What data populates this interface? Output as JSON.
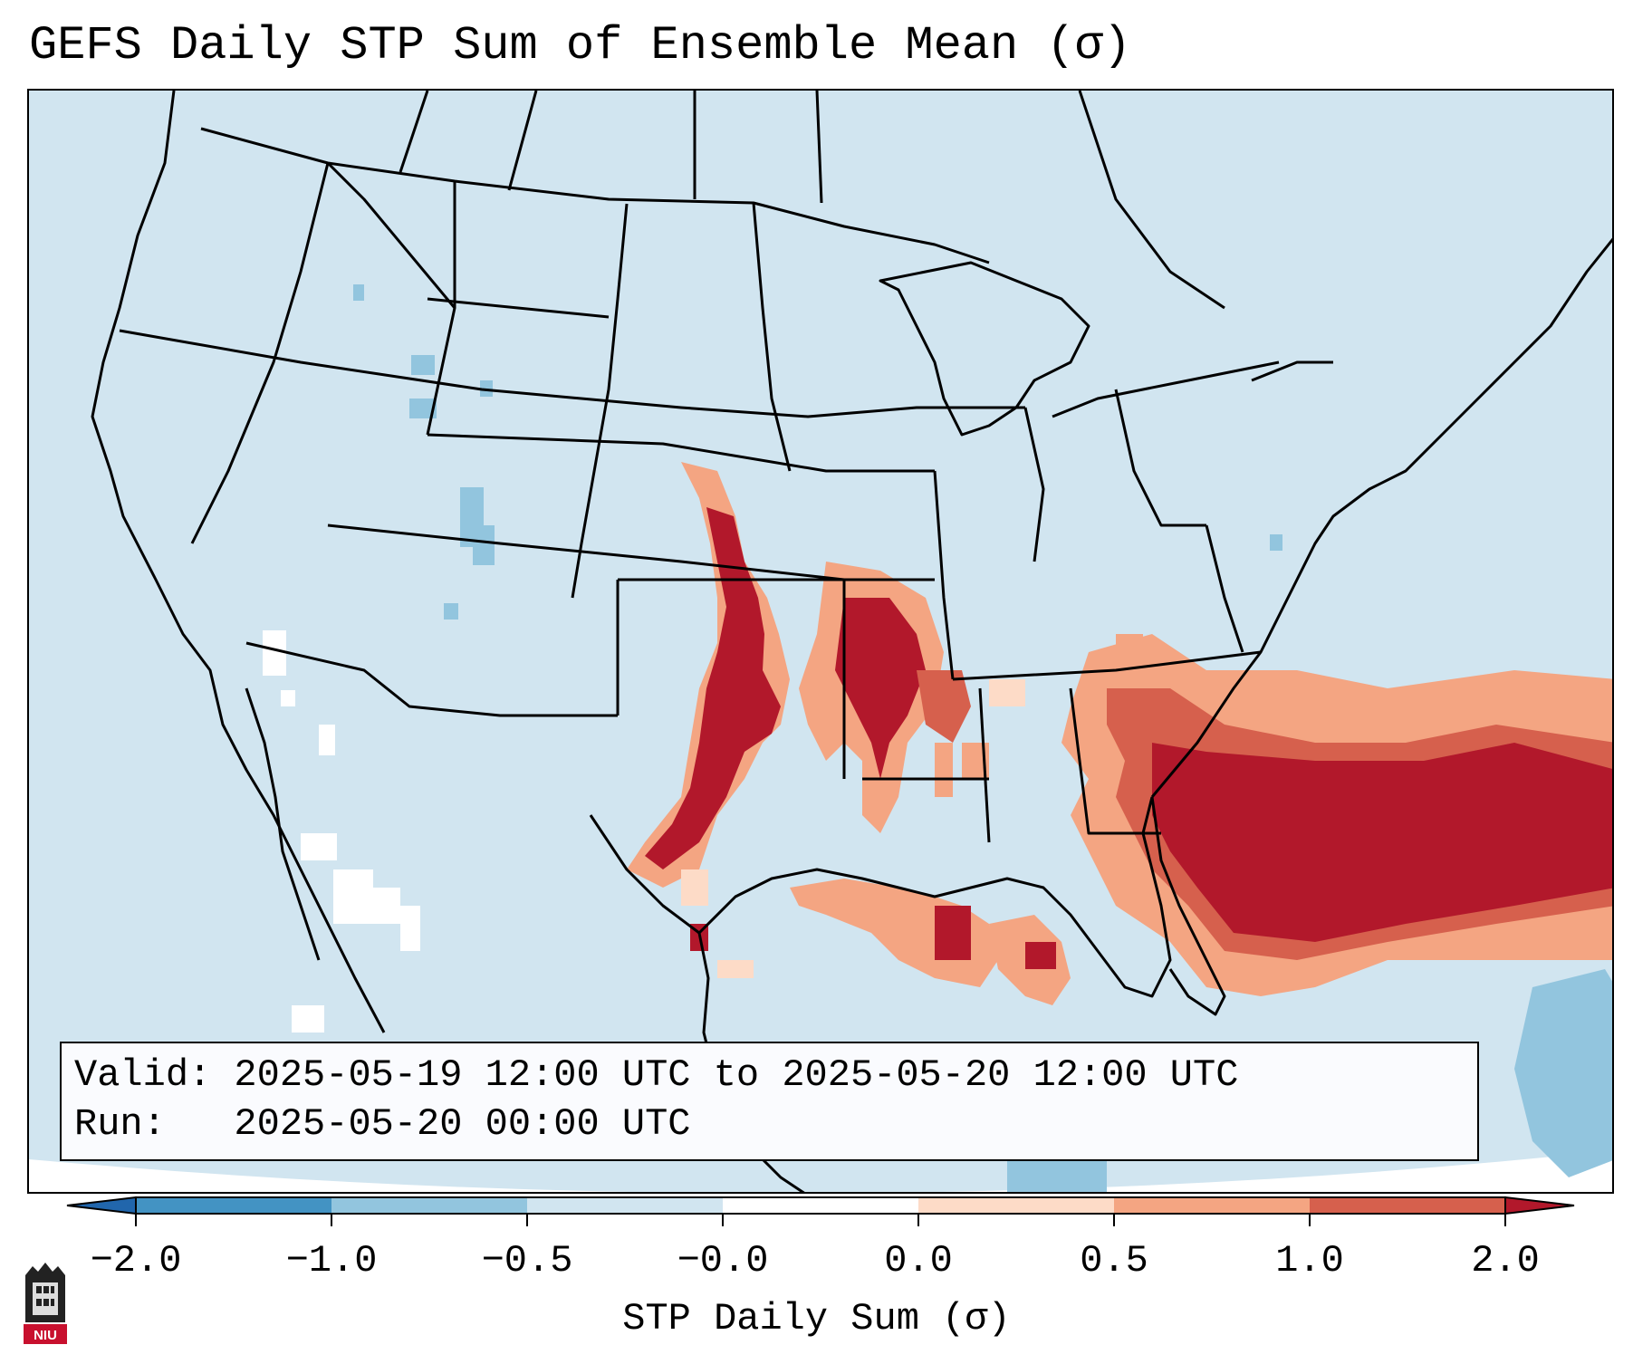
{
  "title": "GEFS Daily STP Sum of Ensemble Mean (σ)",
  "valid_line": "Valid: 2025-05-19 12:00 UTC to 2025-05-20 12:00 UTC",
  "run_line": "Run:   2025-05-20 00:00 UTC",
  "colorbar": {
    "label": "STP Daily Sum (σ)",
    "ticks": [
      "−2.0",
      "−1.0",
      "−0.5",
      "−0.0",
      "0.0",
      "0.5",
      "1.0",
      "2.0"
    ],
    "colors": [
      "#4393c3",
      "#92c5de",
      "#d1e5f0",
      "#ffffff",
      "#fddbc7",
      "#f4a582",
      "#d6604d"
    ],
    "under_color": "#2166ac",
    "over_color": "#b2182b",
    "extend": "both"
  },
  "logo_text": "NIU",
  "colors": {
    "map_background": "#d1e5f0",
    "high_anomaly": "#b2182b"
  }
}
